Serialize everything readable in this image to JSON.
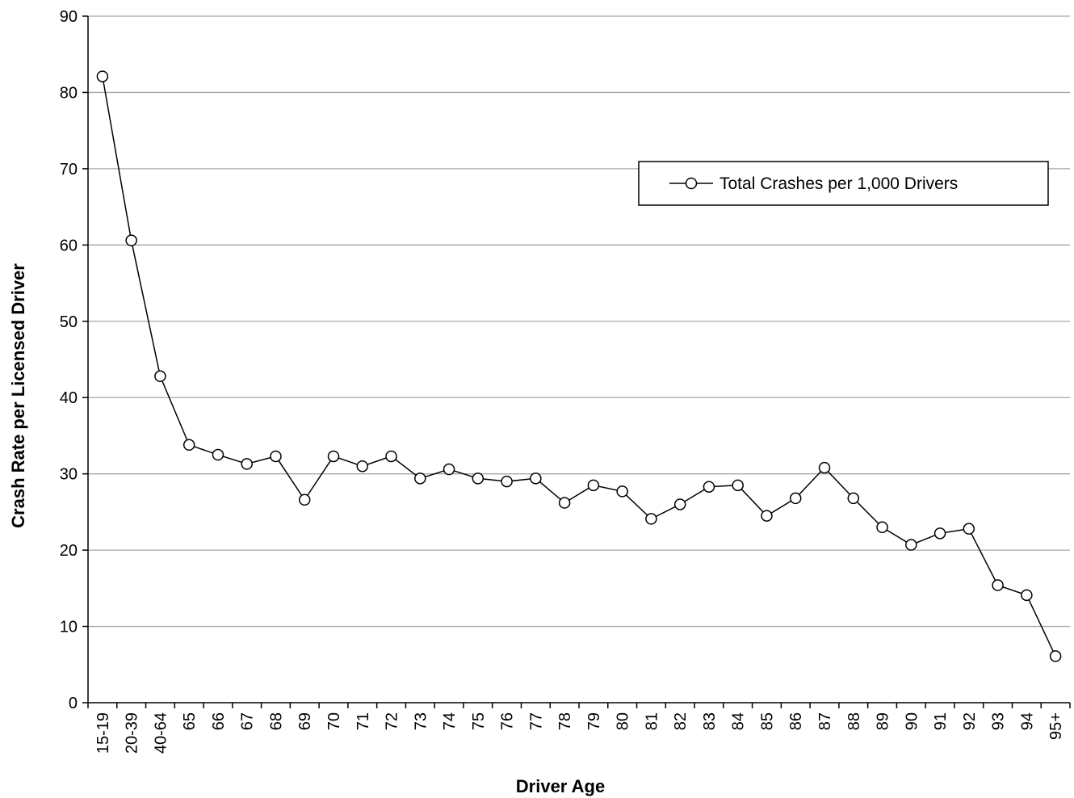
{
  "chart_data": {
    "type": "line",
    "title": "",
    "xlabel": "Driver Age",
    "ylabel": "Crash Rate per Licensed Driver",
    "categories": [
      "15-19",
      "20-39",
      "40-64",
      "65",
      "66",
      "67",
      "68",
      "69",
      "70",
      "71",
      "72",
      "73",
      "74",
      "75",
      "76",
      "77",
      "78",
      "79",
      "80",
      "81",
      "82",
      "83",
      "84",
      "85",
      "86",
      "87",
      "88",
      "89",
      "90",
      "91",
      "92",
      "93",
      "94",
      "95+"
    ],
    "series": [
      {
        "name": "Total Crashes per 1,000 Drivers",
        "values": [
          82.1,
          60.6,
          42.8,
          33.8,
          32.5,
          31.3,
          32.3,
          26.6,
          32.3,
          31.0,
          32.3,
          29.4,
          30.6,
          29.4,
          29.0,
          29.4,
          26.2,
          28.5,
          27.7,
          24.1,
          26.0,
          28.3,
          28.5,
          24.5,
          26.8,
          30.8,
          26.8,
          23.0,
          20.7,
          22.2,
          22.8,
          15.4,
          14.1,
          6.1
        ]
      }
    ],
    "ylim": [
      0,
      90
    ],
    "yticks": [
      0,
      10,
      20,
      30,
      40,
      50,
      60,
      70,
      80,
      90
    ],
    "grid": true,
    "legend_position": "top-right",
    "colors": {
      "line": "#000000",
      "marker_fill": "#ffffff",
      "grid": "#a6a6a6"
    }
  }
}
